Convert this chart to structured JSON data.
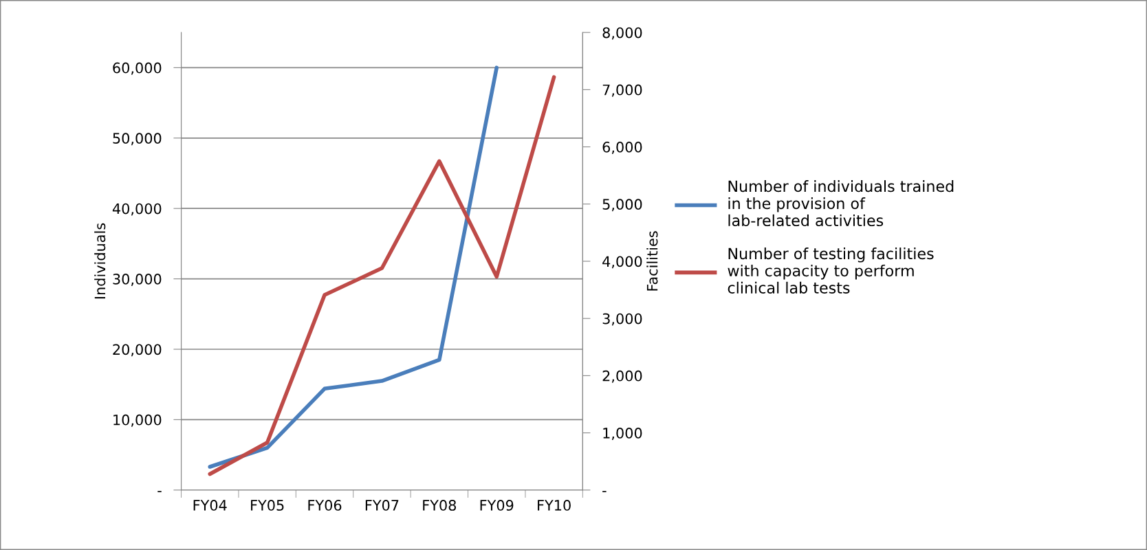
{
  "chart_data": {
    "type": "line",
    "categories": [
      "FY04",
      "FY05",
      "FY06",
      "FY07",
      "FY08",
      "FY09",
      "FY10"
    ],
    "ylabel": "Individuals",
    "y2label": "Facilities",
    "ylim": [
      0,
      65000
    ],
    "yticks": [
      {
        "value": 0,
        "label": "-"
      },
      {
        "value": 10000,
        "label": "10,000"
      },
      {
        "value": 20000,
        "label": "20,000"
      },
      {
        "value": 30000,
        "label": "30,000"
      },
      {
        "value": 40000,
        "label": "40,000"
      },
      {
        "value": 50000,
        "label": "50,000"
      },
      {
        "value": 60000,
        "label": "60,000"
      }
    ],
    "y2lim": [
      0,
      8000
    ],
    "y2ticks": [
      {
        "value": 0,
        "label": "-"
      },
      {
        "value": 1000,
        "label": "1,000"
      },
      {
        "value": 2000,
        "label": "2,000"
      },
      {
        "value": 3000,
        "label": "3,000"
      },
      {
        "value": 4000,
        "label": "4,000"
      },
      {
        "value": 5000,
        "label": "5,000"
      },
      {
        "value": 6000,
        "label": "6,000"
      },
      {
        "value": 7000,
        "label": "7,000"
      },
      {
        "value": 8000,
        "label": "8,000"
      }
    ],
    "grid": "y",
    "legend": "right",
    "series": [
      {
        "name": "Number of individuals trained in the provision of lab-related activities",
        "color": "#4a7ebb",
        "values": [
          3300,
          6000,
          14400,
          15500,
          18500,
          60000,
          null
        ]
      },
      {
        "name": "Number of testing facilities with capacity to perform clinical lab tests",
        "color": "#be4b48",
        "axis": "y2",
        "values": [
          280,
          830,
          3410,
          3880,
          5750,
          3730,
          7220
        ]
      }
    ]
  }
}
